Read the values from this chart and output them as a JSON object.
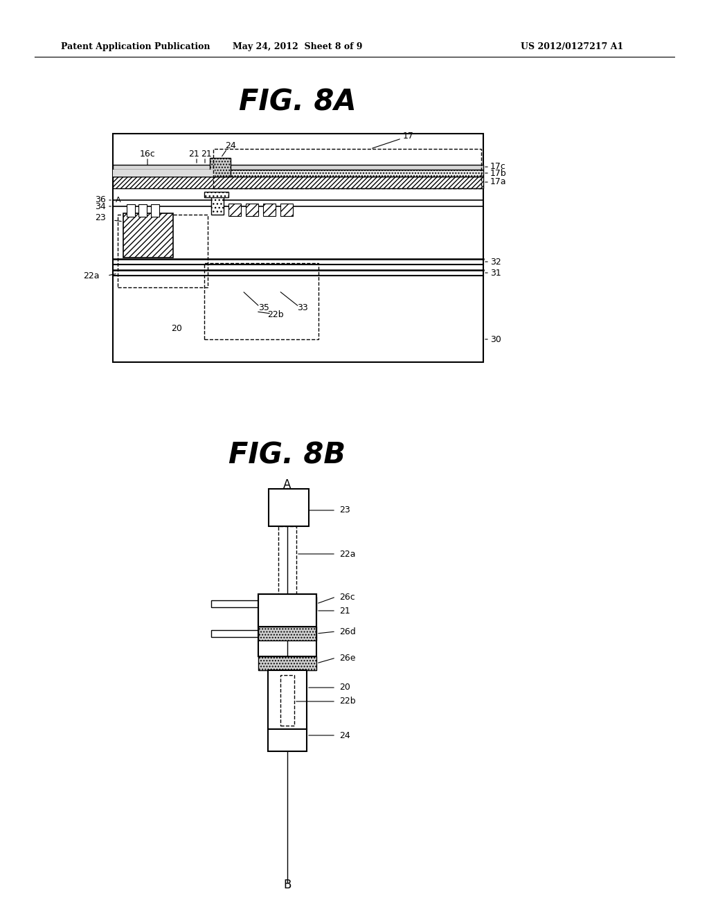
{
  "bg_color": "#ffffff",
  "header_left": "Patent Application Publication",
  "header_center": "May 24, 2012  Sheet 8 of 9",
  "header_right": "US 2012/0127217 A1",
  "fig8a_title": "FIG. 8A",
  "fig8b_title": "FIG. 8B",
  "fig_width": 10.24,
  "fig_height": 13.2
}
